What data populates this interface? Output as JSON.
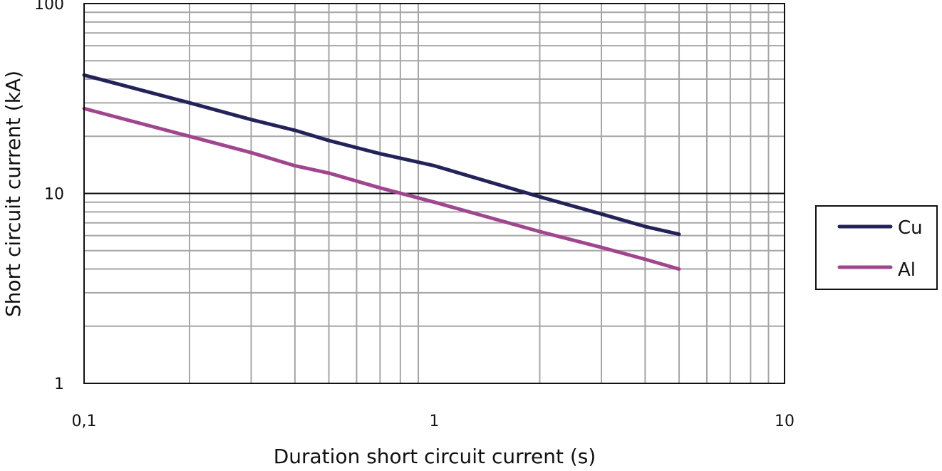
{
  "chart_data": {
    "type": "line",
    "xlabel": "Duration short circuit current (s)",
    "ylabel": "Short circuit current (kA)",
    "x_scale": "log",
    "y_scale": "log",
    "xlim": [
      0.1,
      10
    ],
    "ylim": [
      1,
      100
    ],
    "x_ticks": [
      0.1,
      1,
      10
    ],
    "x_tick_labels": [
      "0,1",
      "1",
      "10"
    ],
    "y_ticks": [
      1,
      10,
      100
    ],
    "y_tick_labels": [
      "1",
      "10",
      "100"
    ],
    "grid": true,
    "legend_position": "right",
    "series": [
      {
        "name": "Cu",
        "color": "#23235a",
        "x": [
          0.1,
          0.2,
          0.3,
          0.4,
          0.5,
          0.7,
          1,
          2,
          3,
          4,
          5
        ],
        "y": [
          42,
          30,
          24.5,
          21.5,
          19,
          16.2,
          14,
          9.6,
          7.8,
          6.7,
          6.1
        ]
      },
      {
        "name": "Al",
        "color": "#a0468f",
        "x": [
          0.1,
          0.2,
          0.3,
          0.4,
          0.5,
          0.7,
          1,
          2,
          3,
          4,
          5
        ],
        "y": [
          28,
          20,
          16.4,
          14,
          12.8,
          10.7,
          9,
          6.3,
          5.2,
          4.5,
          4
        ]
      }
    ]
  }
}
